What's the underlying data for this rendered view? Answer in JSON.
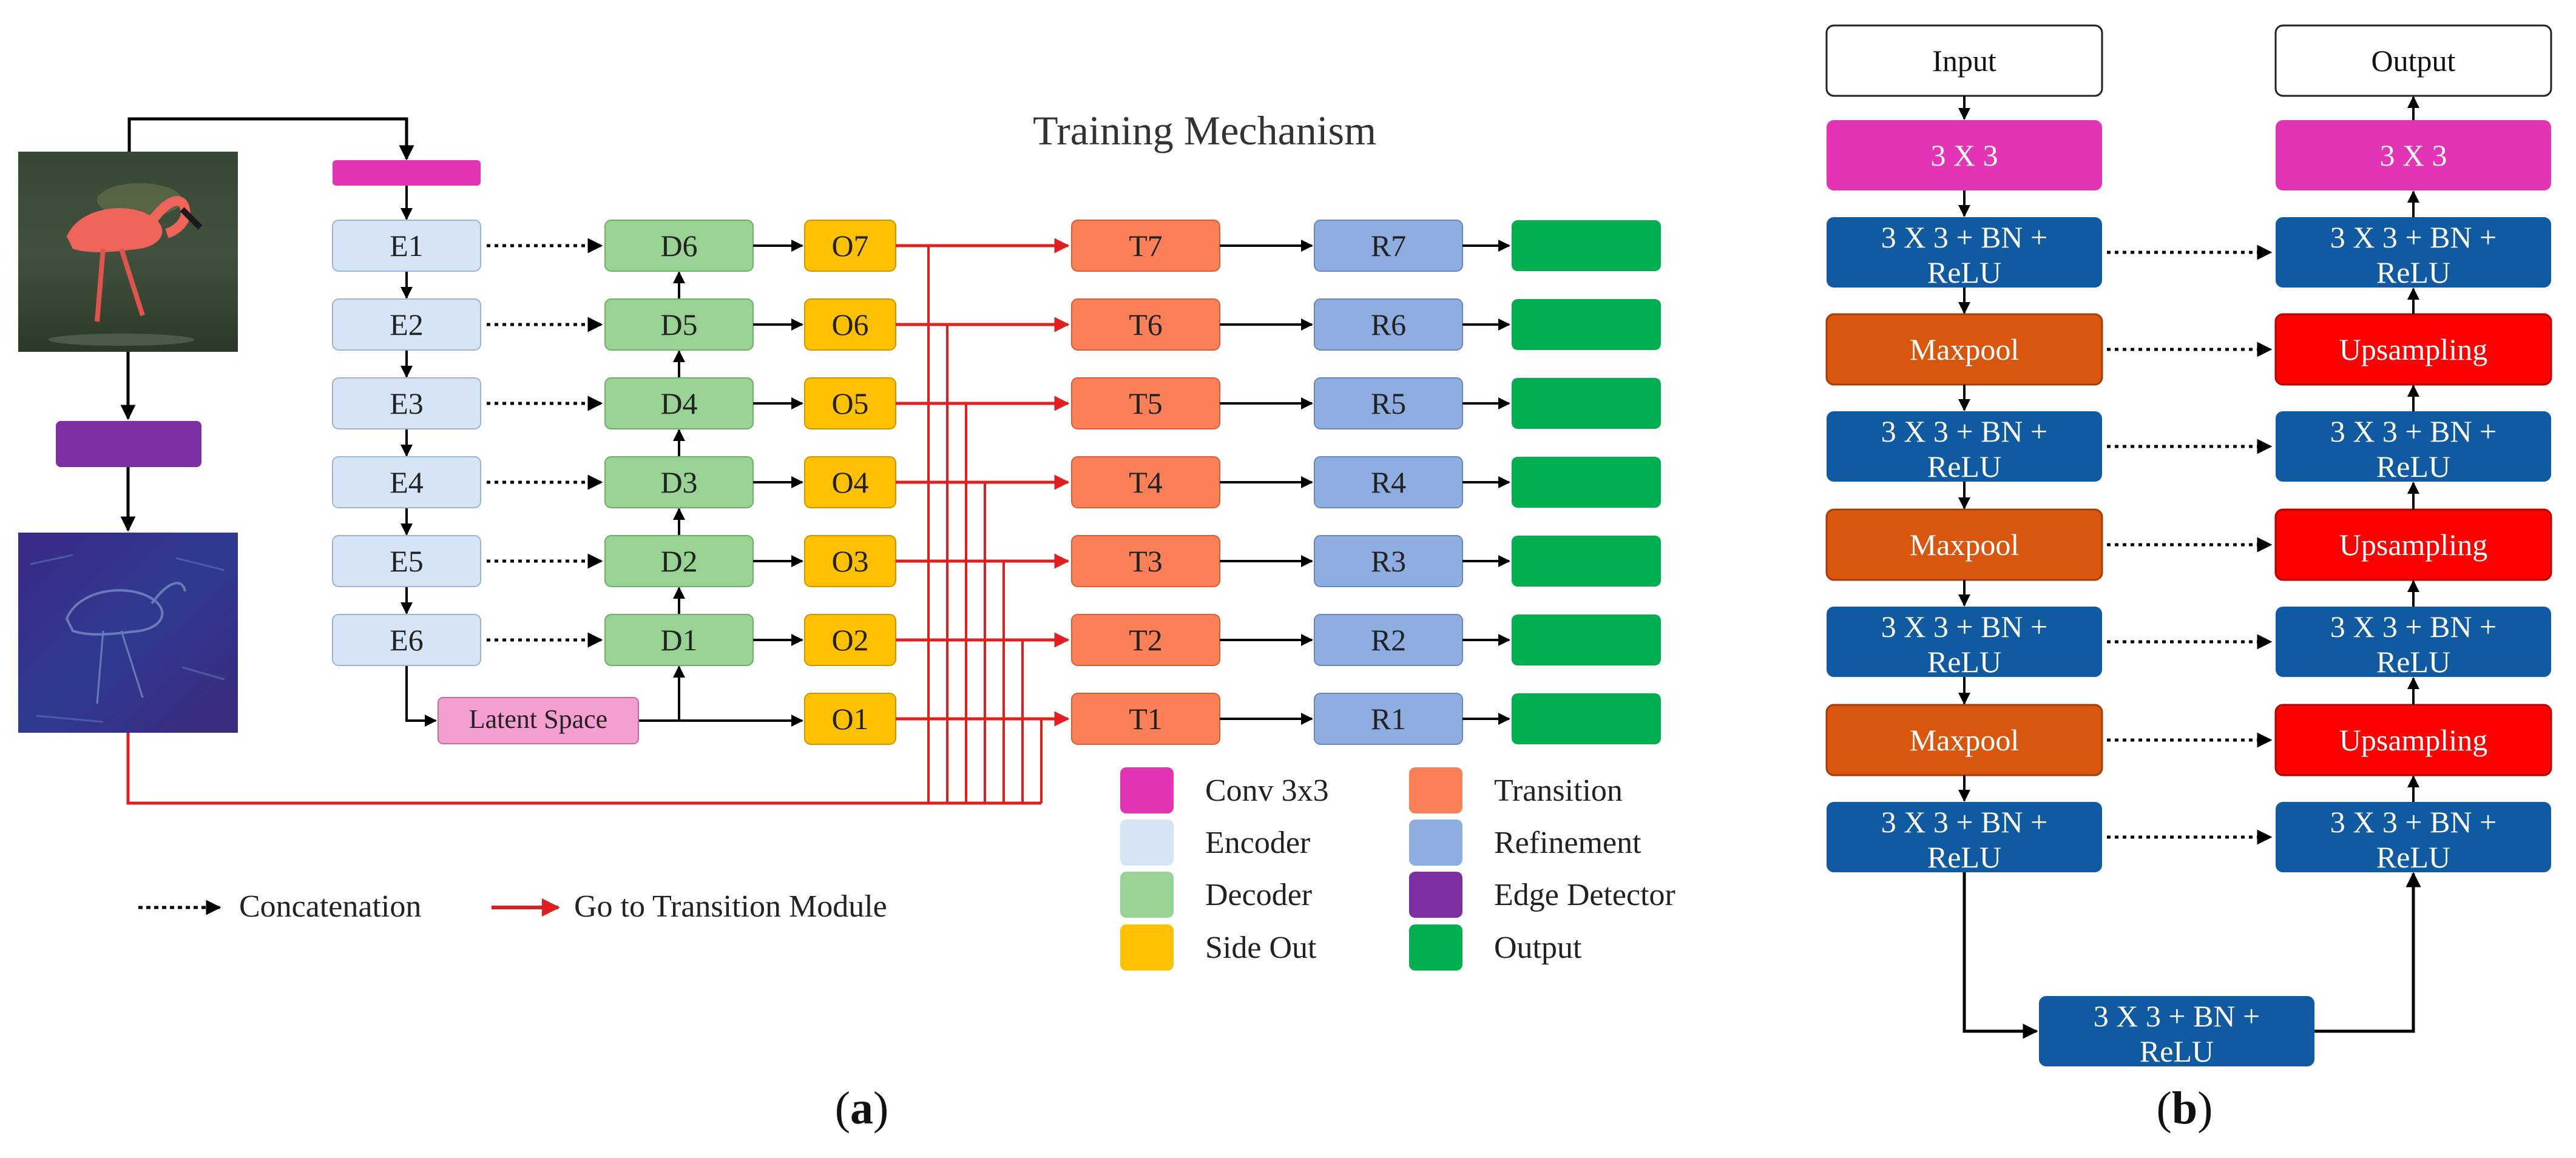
{
  "panel_a": {
    "title": "Training Mechanism",
    "caption_prefix": "(",
    "caption_letter": "a",
    "caption_suffix": ")",
    "latent_label": "Latent Space",
    "encoders": [
      "E1",
      "E2",
      "E3",
      "E4",
      "E5",
      "E6"
    ],
    "decoders": [
      "D6",
      "D5",
      "D4",
      "D3",
      "D2",
      "D1"
    ],
    "side_outs": [
      "O7",
      "O6",
      "O5",
      "O4",
      "O3",
      "O2",
      "O1"
    ],
    "transitions": [
      "T7",
      "T6",
      "T5",
      "T4",
      "T3",
      "T2",
      "T1"
    ],
    "refinements": [
      "R7",
      "R6",
      "R5",
      "R4",
      "R3",
      "R2",
      "R1"
    ],
    "bottom_legend": {
      "concatenation": "Concatenation",
      "transition": "Go to Transition Module"
    },
    "legend": [
      {
        "label": "Conv 3x3",
        "color": "#e234b4"
      },
      {
        "label": "Transition",
        "color": "#fb7f57"
      },
      {
        "label": "Encoder",
        "color": "#d5e5f5"
      },
      {
        "label": "Refinement",
        "color": "#8eade0"
      },
      {
        "label": "Decoder",
        "color": "#99d393"
      },
      {
        "label": "Edge Detector",
        "color": "#7e2fa1"
      },
      {
        "label": "Side Out",
        "color": "#ffc000"
      },
      {
        "label": "Output",
        "color": "#00b050"
      }
    ]
  },
  "panel_b": {
    "caption_prefix": "(",
    "caption_letter": "b",
    "caption_suffix": ")",
    "input_label": "Input",
    "output_label": "Output",
    "conv_label": "3 X 3",
    "block_line1": "3 X 3 + BN +",
    "block_line2": "ReLU",
    "maxpool_label": "Maxpool",
    "upsampling_label": "Upsampling"
  },
  "colors": {
    "conv": "#e234b4",
    "encoder": "#d5e5f5",
    "decoder": "#99d393",
    "side_out": "#ffc000",
    "transition": "#fb7f57",
    "refinement": "#8eade0",
    "output": "#00b050",
    "edge_detector": "#7e2fa1",
    "latent": "#f59fd0",
    "block_blue": "#0f5aa0",
    "maxpool": "#d9560f",
    "upsampling": "#fe0000",
    "red_arrow": "#e02020"
  }
}
